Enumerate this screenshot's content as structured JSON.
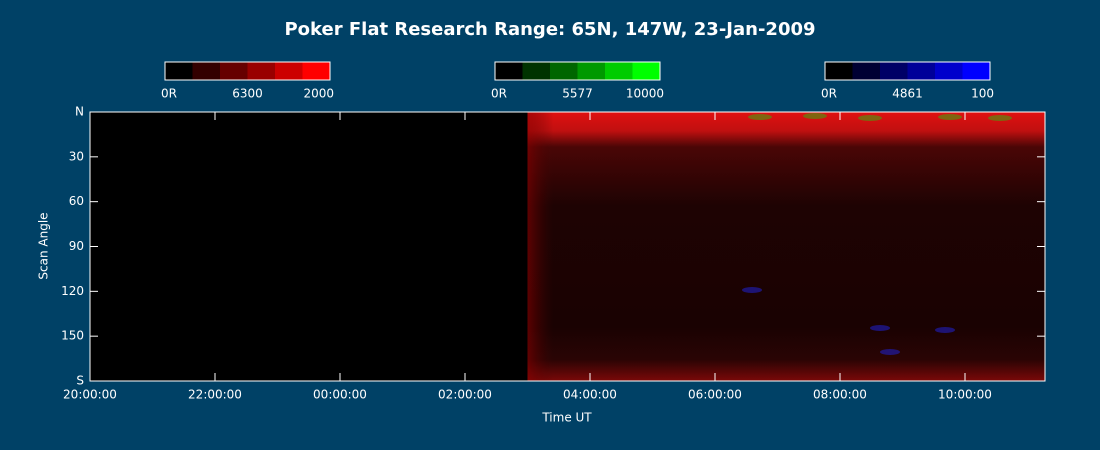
{
  "chart_data": {
    "type": "keogram",
    "title": "Poker Flat Research Range: 65N, 147W, 23-Jan-2009",
    "xlabel": "Time UT",
    "ylabel": "Scan Angle",
    "xlim": [
      0,
      15.28
    ],
    "xticks": [
      {
        "value": 0,
        "label": "20:00:00"
      },
      {
        "value": 2,
        "label": "22:00:00"
      },
      {
        "value": 4,
        "label": "00:00:00"
      },
      {
        "value": 6,
        "label": "02:00:00"
      },
      {
        "value": 8,
        "label": "04:00:00"
      },
      {
        "value": 10,
        "label": "06:00:00"
      },
      {
        "value": 12,
        "label": "08:00:00"
      },
      {
        "value": 14,
        "label": "10:00:00"
      }
    ],
    "ylim": [
      0,
      180
    ],
    "yticks": [
      {
        "value": 0,
        "label": "N"
      },
      30,
      60,
      90,
      120,
      150,
      {
        "value": 180,
        "label": "S"
      }
    ],
    "data_start": 7,
    "colorbars": [
      {
        "labels": [
          "0R",
          "6300",
          "2000"
        ],
        "color": "#ff0000"
      },
      {
        "labels": [
          "0R",
          "5577",
          "10000"
        ],
        "color": "#00ff00"
      },
      {
        "labels": [
          "0R",
          "4861",
          "100"
        ],
        "color": "#0000ff"
      }
    ]
  }
}
